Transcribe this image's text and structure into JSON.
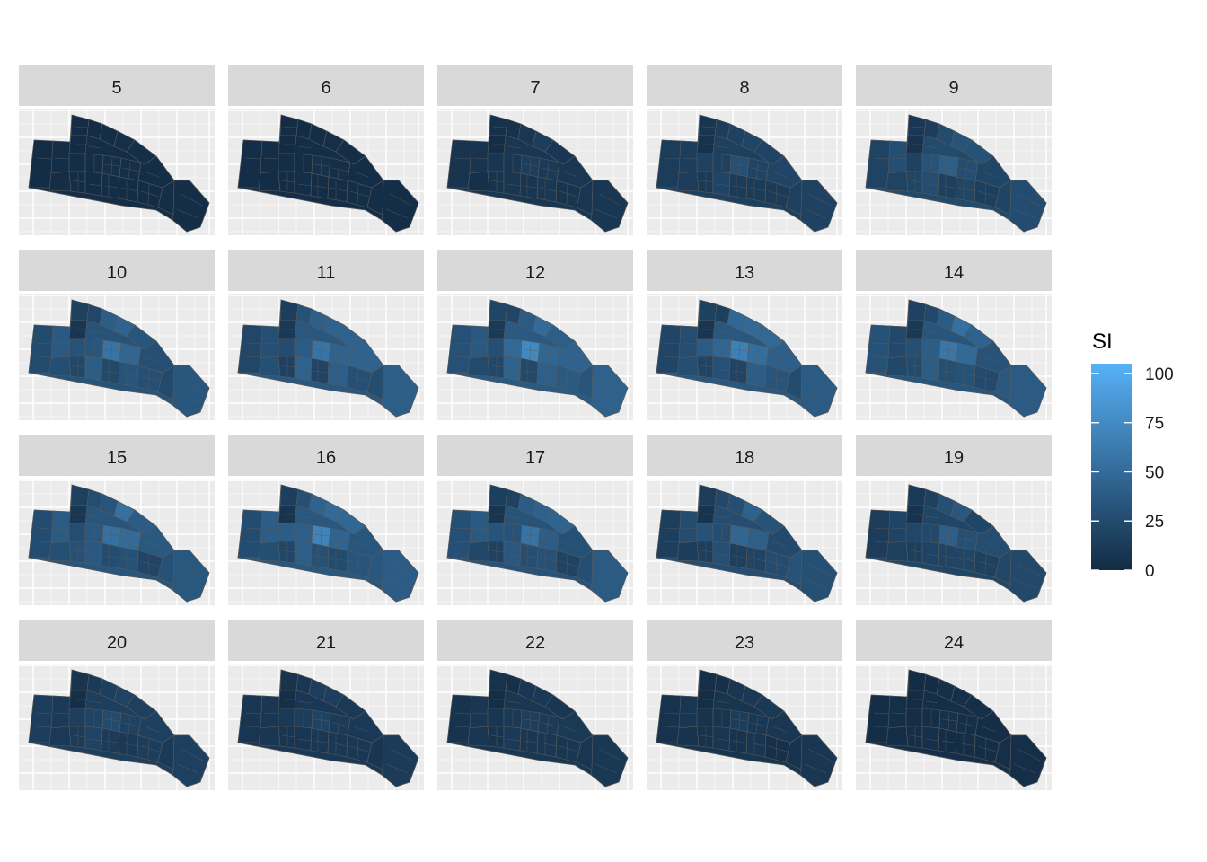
{
  "chart_data": {
    "type": "faceted-choropleth",
    "facet_titles": [
      "5",
      "6",
      "7",
      "8",
      "9",
      "10",
      "11",
      "12",
      "13",
      "14",
      "15",
      "16",
      "17",
      "18",
      "19",
      "20",
      "21",
      "22",
      "23",
      "24"
    ],
    "facet_intensity": [
      3,
      3,
      12,
      22,
      32,
      42,
      46,
      48,
      46,
      44,
      44,
      46,
      42,
      36,
      28,
      20,
      14,
      12,
      10,
      4
    ],
    "legend": {
      "title": "SI",
      "min": 0,
      "max": 105,
      "ticks": [
        {
          "value": 0,
          "label": "0"
        },
        {
          "value": 25,
          "label": "25"
        },
        {
          "value": 50,
          "label": "50"
        },
        {
          "value": 75,
          "label": "75"
        },
        {
          "value": 100,
          "label": "100"
        }
      ],
      "low_color": "#132B43",
      "high_color": "#56B1F7",
      "placement": "right"
    },
    "panel_background": "#EBEBEB",
    "strip_background": "#D9D9D9",
    "border_color": "#5a5a5a"
  }
}
